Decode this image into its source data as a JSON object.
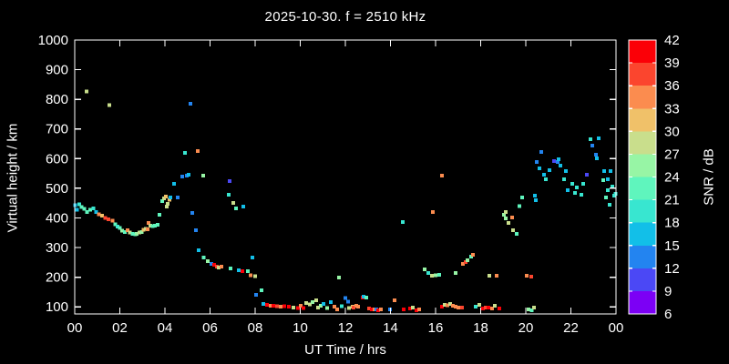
{
  "title": "2025-10-30. f = 2510 kHz",
  "colors": {
    "background": "#000000",
    "foreground": "#ffffff"
  },
  "chart_data": {
    "type": "scatter",
    "title": "2025-10-30. f = 2510 kHz",
    "xlabel": "UT Time / hrs",
    "ylabel": "Virtual height / km",
    "colorbar_label": "SNR / dB",
    "x_range_hours": [
      0,
      24
    ],
    "y_range_km": [
      76,
      1000
    ],
    "snr_range_db": [
      6,
      42
    ],
    "grid": false,
    "x_tick_hours": [
      0,
      2,
      4,
      6,
      8,
      10,
      12,
      14,
      16,
      18,
      20,
      22,
      24
    ],
    "x_tick_labels": [
      "00",
      "02",
      "04",
      "06",
      "08",
      "10",
      "12",
      "14",
      "16",
      "18",
      "20",
      "22",
      "00"
    ],
    "y_ticks_km": [
      100,
      200,
      300,
      400,
      500,
      600,
      700,
      800,
      900,
      1000
    ],
    "colorbar_ticks_db": [
      6,
      9,
      12,
      15,
      18,
      21,
      24,
      27,
      30,
      33,
      36,
      39,
      42
    ],
    "colormap": [
      {
        "min": 6,
        "max": 9,
        "color": "#7c00f5"
      },
      {
        "min": 9,
        "max": 12,
        "color": "#4b48f5"
      },
      {
        "min": 12,
        "max": 15,
        "color": "#2384f0"
      },
      {
        "min": 15,
        "max": 18,
        "color": "#12bfe8"
      },
      {
        "min": 18,
        "max": 21,
        "color": "#38e6d0"
      },
      {
        "min": 21,
        "max": 24,
        "color": "#5ff5bd"
      },
      {
        "min": 24,
        "max": 27,
        "color": "#97f5a5"
      },
      {
        "min": 27,
        "max": 30,
        "color": "#c9de8c"
      },
      {
        "min": 30,
        "max": 33,
        "color": "#f0c169"
      },
      {
        "min": 33,
        "max": 36,
        "color": "#fb8c4f"
      },
      {
        "min": 36,
        "max": 39,
        "color": "#fb452e"
      },
      {
        "min": 39,
        "max": 42,
        "color": "#fb0007"
      }
    ],
    "points": [
      [
        0.03,
        443,
        17
      ],
      [
        0.1,
        428,
        17
      ],
      [
        0.2,
        446,
        20
      ],
      [
        0.3,
        437,
        23
      ],
      [
        0.42,
        430,
        23
      ],
      [
        0.53,
        827,
        29
      ],
      [
        0.55,
        420,
        23
      ],
      [
        0.68,
        428,
        23
      ],
      [
        0.82,
        432,
        20
      ],
      [
        0.95,
        420,
        17
      ],
      [
        1.08,
        412,
        35
      ],
      [
        1.22,
        408,
        32
      ],
      [
        1.35,
        400,
        38
      ],
      [
        1.5,
        396,
        38
      ],
      [
        1.54,
        781,
        29
      ],
      [
        1.68,
        390,
        35
      ],
      [
        1.8,
        378,
        23
      ],
      [
        1.9,
        371,
        20
      ],
      [
        2.0,
        366,
        23
      ],
      [
        2.1,
        357,
        26
      ],
      [
        2.22,
        352,
        23
      ],
      [
        2.34,
        359,
        35
      ],
      [
        2.45,
        350,
        29
      ],
      [
        2.57,
        346,
        23
      ],
      [
        2.68,
        344,
        23
      ],
      [
        2.75,
        346,
        26
      ],
      [
        2.87,
        350,
        29
      ],
      [
        2.97,
        352,
        26
      ],
      [
        3.05,
        360,
        32
      ],
      [
        3.15,
        363,
        29
      ],
      [
        3.23,
        362,
        35
      ],
      [
        3.27,
        383,
        35
      ],
      [
        3.35,
        374,
        29
      ],
      [
        3.45,
        372,
        23
      ],
      [
        3.56,
        374,
        23
      ],
      [
        3.68,
        377,
        23
      ],
      [
        3.76,
        411,
        23
      ],
      [
        3.88,
        457,
        23
      ],
      [
        3.96,
        466,
        29
      ],
      [
        4.04,
        472,
        32
      ],
      [
        4.08,
        438,
        29
      ],
      [
        4.12,
        448,
        29
      ],
      [
        4.2,
        462,
        32
      ],
      [
        4.24,
        469,
        17
      ],
      [
        4.4,
        515,
        17
      ],
      [
        4.57,
        469,
        13
      ],
      [
        4.77,
        540,
        13
      ],
      [
        4.89,
        620,
        20
      ],
      [
        4.97,
        543,
        13
      ],
      [
        5.05,
        545,
        17
      ],
      [
        5.13,
        785,
        13
      ],
      [
        5.21,
        417,
        13
      ],
      [
        5.37,
        359,
        13
      ],
      [
        5.45,
        626,
        35
      ],
      [
        5.7,
        543,
        26
      ],
      [
        5.49,
        291,
        17
      ],
      [
        5.72,
        266,
        23
      ],
      [
        5.9,
        254,
        26
      ],
      [
        6.06,
        245,
        13
      ],
      [
        6.18,
        242,
        41
      ],
      [
        6.3,
        236,
        38
      ],
      [
        6.38,
        233,
        29
      ],
      [
        6.51,
        236,
        35
      ],
      [
        6.91,
        230,
        23
      ],
      [
        7.27,
        224,
        17
      ],
      [
        7.43,
        221,
        41
      ],
      [
        7.68,
        221,
        23
      ],
      [
        7.8,
        206,
        35
      ],
      [
        8.0,
        203,
        29
      ],
      [
        7.88,
        267,
        17
      ],
      [
        6.83,
        478,
        20
      ],
      [
        6.87,
        524,
        10
      ],
      [
        7.03,
        451,
        29
      ],
      [
        7.15,
        432,
        23
      ],
      [
        7.47,
        438,
        17
      ],
      [
        8.04,
        141,
        13
      ],
      [
        8.28,
        156,
        23
      ],
      [
        8.36,
        110,
        17
      ],
      [
        8.53,
        107,
        41
      ],
      [
        8.69,
        104,
        35
      ],
      [
        8.81,
        104,
        41
      ],
      [
        8.97,
        102,
        38
      ],
      [
        9.13,
        100,
        35
      ],
      [
        9.29,
        102,
        41
      ],
      [
        9.49,
        100,
        41
      ],
      [
        9.7,
        98,
        29
      ],
      [
        9.9,
        96,
        41
      ],
      [
        10.02,
        104,
        35
      ],
      [
        10.14,
        96,
        41
      ],
      [
        10.26,
        113,
        29
      ],
      [
        10.42,
        108,
        29
      ],
      [
        10.55,
        116,
        26
      ],
      [
        10.71,
        122,
        29
      ],
      [
        10.79,
        98,
        29
      ],
      [
        10.91,
        103,
        26
      ],
      [
        11.03,
        110,
        17
      ],
      [
        11.19,
        96,
        26
      ],
      [
        11.35,
        116,
        17
      ],
      [
        11.52,
        100,
        35
      ],
      [
        11.64,
        92,
        35
      ],
      [
        11.72,
        199,
        26
      ],
      [
        11.84,
        102,
        20
      ],
      [
        12.0,
        129,
        13
      ],
      [
        12.12,
        117,
        13
      ],
      [
        12.16,
        96,
        29
      ],
      [
        12.32,
        101,
        32
      ],
      [
        12.36,
        98,
        38
      ],
      [
        12.48,
        104,
        35
      ],
      [
        12.57,
        100,
        35
      ],
      [
        12.77,
        132,
        41
      ],
      [
        12.81,
        134,
        17
      ],
      [
        12.93,
        131,
        23
      ],
      [
        13.05,
        95,
        38
      ],
      [
        13.17,
        92,
        41
      ],
      [
        13.29,
        92,
        35
      ],
      [
        13.37,
        91,
        13
      ],
      [
        13.45,
        89,
        41
      ],
      [
        13.57,
        92,
        35
      ],
      [
        13.98,
        91,
        13
      ],
      [
        14.18,
        122,
        35
      ],
      [
        14.55,
        386,
        20
      ],
      [
        14.59,
        92,
        41
      ],
      [
        14.87,
        95,
        41
      ],
      [
        14.99,
        98,
        29
      ],
      [
        15.15,
        89,
        41
      ],
      [
        15.27,
        92,
        35
      ],
      [
        15.52,
        227,
        26
      ],
      [
        15.68,
        214,
        20
      ],
      [
        15.84,
        205,
        29
      ],
      [
        16.0,
        206,
        26
      ],
      [
        16.16,
        208,
        23
      ],
      [
        15.88,
        420,
        35
      ],
      [
        16.28,
        543,
        35
      ],
      [
        16.28,
        101,
        41
      ],
      [
        16.4,
        107,
        29
      ],
      [
        16.53,
        105,
        35
      ],
      [
        16.65,
        110,
        29
      ],
      [
        16.77,
        104,
        35
      ],
      [
        16.89,
        101,
        35
      ],
      [
        17.01,
        98,
        35
      ],
      [
        17.17,
        98,
        38
      ],
      [
        16.89,
        214,
        26
      ],
      [
        17.21,
        245,
        35
      ],
      [
        17.33,
        251,
        38
      ],
      [
        17.41,
        257,
        26
      ],
      [
        17.58,
        270,
        23
      ],
      [
        17.66,
        276,
        35
      ],
      [
        17.78,
        101,
        20
      ],
      [
        17.94,
        107,
        29
      ],
      [
        18.1,
        95,
        41
      ],
      [
        18.22,
        98,
        38
      ],
      [
        18.34,
        98,
        41
      ],
      [
        18.5,
        95,
        35
      ],
      [
        18.62,
        104,
        29
      ],
      [
        18.83,
        95,
        41
      ],
      [
        18.38,
        205,
        29
      ],
      [
        18.71,
        205,
        35
      ],
      [
        19.03,
        411,
        26
      ],
      [
        19.11,
        398,
        26
      ],
      [
        19.11,
        420,
        29
      ],
      [
        19.23,
        383,
        29
      ],
      [
        19.39,
        401,
        35
      ],
      [
        19.43,
        359,
        29
      ],
      [
        19.6,
        346,
        23
      ],
      [
        19.72,
        439,
        23
      ],
      [
        19.84,
        469,
        23
      ],
      [
        20.04,
        205,
        35
      ],
      [
        20.24,
        202,
        38
      ],
      [
        20.12,
        92,
        26
      ],
      [
        20.26,
        89,
        23
      ],
      [
        20.36,
        98,
        29
      ],
      [
        20.4,
        475,
        17
      ],
      [
        20.44,
        460,
        17
      ],
      [
        20.48,
        589,
        13
      ],
      [
        20.61,
        567,
        17
      ],
      [
        20.69,
        623,
        13
      ],
      [
        20.81,
        546,
        17
      ],
      [
        20.89,
        530,
        20
      ],
      [
        21.05,
        561,
        17
      ],
      [
        21.25,
        592,
        10
      ],
      [
        21.41,
        589,
        13
      ],
      [
        21.45,
        598,
        17
      ],
      [
        21.54,
        576,
        17
      ],
      [
        21.7,
        530,
        20
      ],
      [
        21.78,
        558,
        17
      ],
      [
        21.86,
        494,
        17
      ],
      [
        22.06,
        515,
        20
      ],
      [
        22.18,
        485,
        20
      ],
      [
        22.26,
        503,
        20
      ],
      [
        22.46,
        478,
        20
      ],
      [
        22.55,
        515,
        20
      ],
      [
        22.71,
        546,
        10
      ],
      [
        22.87,
        666,
        20
      ],
      [
        22.95,
        644,
        13
      ],
      [
        23.11,
        613,
        13
      ],
      [
        23.15,
        601,
        17
      ],
      [
        23.23,
        669,
        17
      ],
      [
        23.44,
        527,
        23
      ],
      [
        23.48,
        558,
        17
      ],
      [
        23.56,
        469,
        23
      ],
      [
        23.64,
        530,
        17
      ],
      [
        23.64,
        494,
        20
      ],
      [
        23.72,
        445,
        20
      ],
      [
        23.76,
        558,
        17
      ],
      [
        23.84,
        506,
        20
      ],
      [
        23.92,
        475,
        20
      ],
      [
        23.97,
        481,
        20
      ]
    ]
  }
}
